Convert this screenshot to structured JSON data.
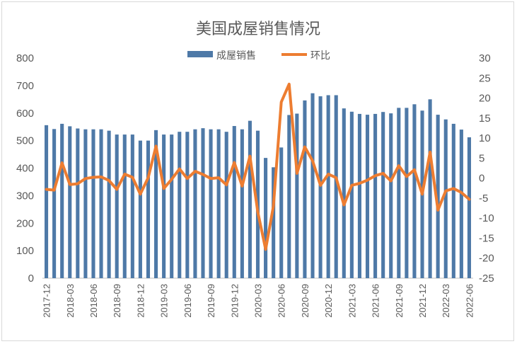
{
  "chart_data": {
    "type": "bar",
    "title": "美国成屋销售情况",
    "x": [
      "2017-12",
      "2018-01",
      "2018-02",
      "2018-03",
      "2018-04",
      "2018-05",
      "2018-06",
      "2018-07",
      "2018-08",
      "2018-09",
      "2018-10",
      "2018-11",
      "2018-12",
      "2019-01",
      "2019-02",
      "2019-03",
      "2019-04",
      "2019-05",
      "2019-06",
      "2019-07",
      "2019-08",
      "2019-09",
      "2019-10",
      "2019-11",
      "2019-12",
      "2020-01",
      "2020-02",
      "2020-03",
      "2020-04",
      "2020-05",
      "2020-06",
      "2020-07",
      "2020-08",
      "2020-09",
      "2020-10",
      "2020-11",
      "2020-12",
      "2021-01",
      "2021-02",
      "2021-03",
      "2021-04",
      "2021-05",
      "2021-06",
      "2021-07",
      "2021-08",
      "2021-09",
      "2021-10",
      "2021-11",
      "2021-12",
      "2022-01",
      "2022-02",
      "2022-03",
      "2022-04",
      "2022-05",
      "2022-06"
    ],
    "x_tick_labels": [
      "2017-12",
      "2018-03",
      "2018-06",
      "2018-09",
      "2018-12",
      "2019-03",
      "2019-06",
      "2019-09",
      "2019-12",
      "2020-03",
      "2020-06",
      "2020-09",
      "2020-12",
      "2021-03",
      "2021-06",
      "2021-09",
      "2021-12",
      "2022-03",
      "2022-06"
    ],
    "series": [
      {
        "name": "成屋销售",
        "type": "bar",
        "axis": "left",
        "color": "#4e79a7",
        "values": [
          556,
          542,
          561,
          552,
          544,
          541,
          541,
          541,
          536,
          522,
          522,
          522,
          500,
          500,
          538,
          522,
          522,
          532,
          532,
          541,
          545,
          541,
          541,
          532,
          553,
          541,
          572,
          536,
          437,
          403,
          475,
          593,
          598,
          646,
          672,
          661,
          665,
          665,
          617,
          605,
          597,
          594,
          597,
          604,
          599,
          619,
          619,
          632,
          609,
          650,
          594,
          577,
          561,
          540,
          512
        ]
      },
      {
        "name": "环比",
        "type": "line",
        "axis": "right",
        "color": "#ed7d31",
        "values": [
          -2.8,
          -3.0,
          3.8,
          -1.6,
          -1.4,
          -0.1,
          0.2,
          0.3,
          -0.6,
          -2.8,
          1.0,
          0.2,
          -4.0,
          0.1,
          8.0,
          -2.6,
          -0.3,
          2.3,
          -0.1,
          1.7,
          0.9,
          -0.1,
          0.1,
          -1.7,
          3.9,
          -2.0,
          5.5,
          -8.5,
          -17.8,
          -7.0,
          19.0,
          23.5,
          1.2,
          7.8,
          4.3,
          -1.8,
          1.0,
          0.1,
          -6.7,
          -1.8,
          -1.3,
          -0.5,
          0.6,
          1.2,
          -0.7,
          3.1,
          0.4,
          2.1,
          -4.0,
          6.5,
          -8.0,
          -3.2,
          -2.6,
          -3.6,
          -5.3
        ]
      }
    ],
    "y_left": {
      "min": 0,
      "max": 800,
      "step": 100
    },
    "y_right": {
      "min": -25,
      "max": 30,
      "step": 5
    },
    "grid": false,
    "legend": {
      "position": "top-center"
    }
  }
}
